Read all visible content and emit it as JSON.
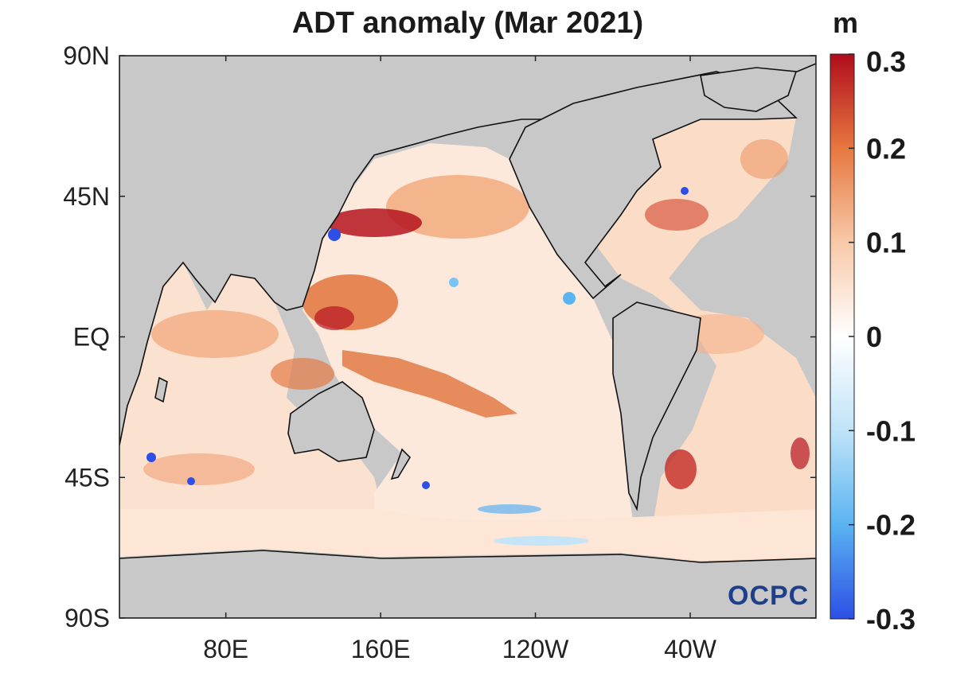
{
  "title": "ADT anomaly (Mar 2021)",
  "units": "m",
  "watermark": "OCPC",
  "chart_data": {
    "type": "heatmap",
    "title": "ADT anomaly (Mar 2021)",
    "lat_ticks": [
      {
        "value": 90,
        "label": "90N"
      },
      {
        "value": 45,
        "label": "45N"
      },
      {
        "value": 0,
        "label": "EQ"
      },
      {
        "value": -45,
        "label": "45S"
      },
      {
        "value": -90,
        "label": "90S"
      }
    ],
    "lon_ticks": [
      {
        "value": 80,
        "label": "80E"
      },
      {
        "value": 160,
        "label": "160E"
      },
      {
        "value": 240,
        "label": "120W"
      },
      {
        "value": 320,
        "label": "40W"
      }
    ],
    "lon_range": [
      25,
      385
    ],
    "lat_range": [
      -90,
      90
    ],
    "colorbar": {
      "min": -0.3,
      "max": 0.3,
      "ticks": [
        {
          "value": 0.3,
          "label": "0.3"
        },
        {
          "value": 0.2,
          "label": "0.2"
        },
        {
          "value": 0.1,
          "label": "0.1"
        },
        {
          "value": 0,
          "label": "0"
        },
        {
          "value": -0.1,
          "label": "-0.1"
        },
        {
          "value": -0.2,
          "label": "-0.2"
        },
        {
          "value": -0.3,
          "label": "-0.3"
        }
      ],
      "colors": [
        "#2d4fe6",
        "#5ab4f2",
        "#bfe3f8",
        "#ffffff",
        "#f8c9a8",
        "#e7773f",
        "#b00c1c"
      ]
    },
    "land_color": "#c8c8c8"
  }
}
